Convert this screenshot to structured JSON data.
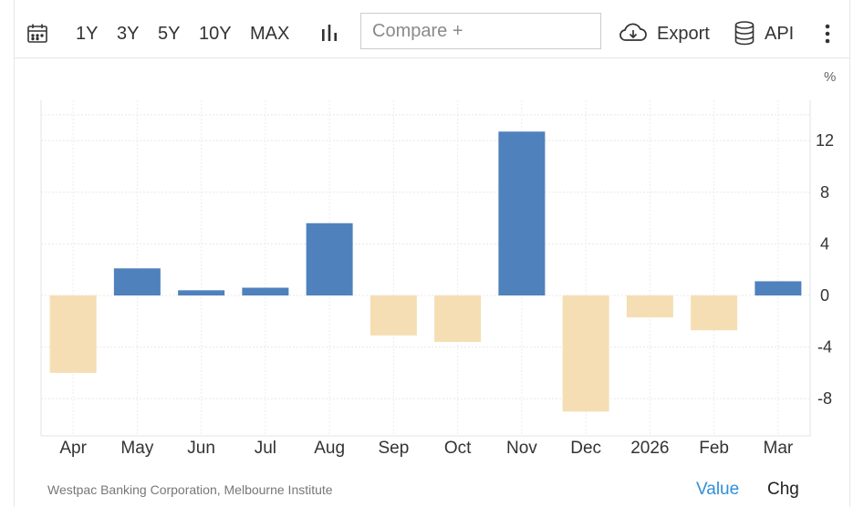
{
  "toolbar": {
    "ranges": [
      "1Y",
      "3Y",
      "5Y",
      "10Y",
      "MAX"
    ],
    "compare_placeholder": "Compare +",
    "export_label": "Export",
    "api_label": "API",
    "icons": [
      "calendar-icon",
      "bar-chart-icon",
      "cloud-download-icon",
      "database-icon",
      "more-vertical-icon"
    ]
  },
  "footer": {
    "source": "Westpac Banking Corporation, Melbourne Institute",
    "value_label": "Value",
    "chg_label": "Chg"
  },
  "colors": {
    "positive": "#4f81bd",
    "negative": "#f5deb3",
    "value_link": "#2f8fd8"
  },
  "chart_data": {
    "type": "bar",
    "unit": "%",
    "categories": [
      "Apr",
      "May",
      "Jun",
      "Jul",
      "Aug",
      "Sep",
      "Oct",
      "Nov",
      "Dec",
      "2026",
      "Feb",
      "Mar"
    ],
    "values": [
      -6.0,
      2.1,
      0.4,
      0.6,
      5.6,
      -3.1,
      -3.6,
      12.7,
      -9.0,
      -1.7,
      -2.7,
      1.1
    ],
    "ylim": [
      -11,
      15
    ],
    "yticks": [
      12,
      8,
      4,
      0,
      -4,
      -8
    ],
    "grid": true,
    "y_axis_side": "right"
  }
}
